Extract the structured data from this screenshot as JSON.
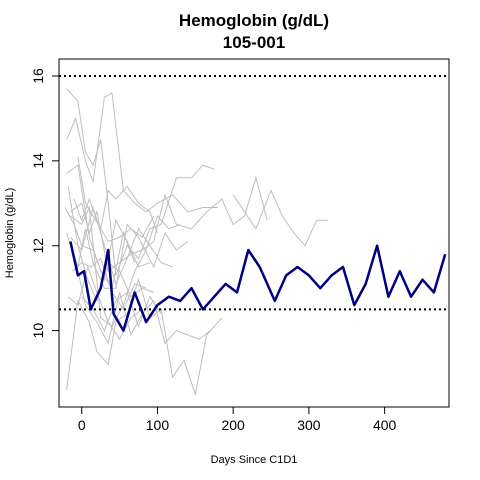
{
  "chart_data": {
    "type": "line",
    "title": "Hemoglobin (g/dL)",
    "subtitle": "105-001",
    "xlabel": "Days Since C1D1",
    "ylabel": "Hemoglobin (g/dL)",
    "xlim": [
      -30,
      485
    ],
    "ylim": [
      8.2,
      16.4
    ],
    "xticks": [
      0,
      100,
      200,
      300,
      400
    ],
    "yticks": [
      10,
      12,
      14,
      16
    ],
    "reference_lines": [
      16,
      10.5
    ],
    "grid": false,
    "highlight_color": "#000080",
    "background_color": "#bebebe",
    "highlight": {
      "name": "105-001",
      "points": [
        [
          -15,
          12.1
        ],
        [
          -5,
          11.3
        ],
        [
          3,
          11.4
        ],
        [
          12,
          10.5
        ],
        [
          25,
          11.0
        ],
        [
          35,
          11.9
        ],
        [
          42,
          10.4
        ],
        [
          55,
          10.0
        ],
        [
          70,
          10.9
        ],
        [
          85,
          10.2
        ],
        [
          100,
          10.6
        ],
        [
          115,
          10.8
        ],
        [
          130,
          10.7
        ],
        [
          145,
          11.0
        ],
        [
          160,
          10.5
        ],
        [
          175,
          10.8
        ],
        [
          190,
          11.1
        ],
        [
          205,
          10.9
        ],
        [
          220,
          11.9
        ],
        [
          235,
          11.5
        ],
        [
          255,
          10.7
        ],
        [
          270,
          11.3
        ],
        [
          285,
          11.5
        ],
        [
          300,
          11.3
        ],
        [
          315,
          11.0
        ],
        [
          330,
          11.3
        ],
        [
          345,
          11.5
        ],
        [
          360,
          10.6
        ],
        [
          375,
          11.1
        ],
        [
          390,
          12.0
        ],
        [
          405,
          10.8
        ],
        [
          420,
          11.4
        ],
        [
          435,
          10.8
        ],
        [
          450,
          11.2
        ],
        [
          465,
          10.9
        ],
        [
          480,
          11.8
        ]
      ]
    },
    "background_series": [
      {
        "points": [
          [
            -20,
            15.7
          ],
          [
            -5,
            15.4
          ],
          [
            5,
            14.2
          ],
          [
            15,
            13.9
          ],
          [
            25,
            14.5
          ],
          [
            35,
            13.0
          ],
          [
            45,
            11.3
          ],
          [
            60,
            12.0
          ],
          [
            75,
            11.7
          ],
          [
            90,
            12.4
          ],
          [
            105,
            12.5
          ],
          [
            125,
            13.6
          ],
          [
            145,
            13.6
          ],
          [
            160,
            13.9
          ],
          [
            175,
            13.8
          ]
        ]
      },
      {
        "points": [
          [
            -20,
            14.5
          ],
          [
            -8,
            15.0
          ],
          [
            5,
            14.0
          ],
          [
            15,
            13.5
          ],
          [
            30,
            15.5
          ],
          [
            40,
            15.6
          ],
          [
            55,
            13.3
          ],
          [
            70,
            13.0
          ],
          [
            85,
            12.8
          ],
          [
            100,
            13.0
          ],
          [
            120,
            13.2
          ],
          [
            140,
            12.8
          ],
          [
            160,
            12.9
          ],
          [
            180,
            12.9
          ]
        ]
      },
      {
        "points": [
          [
            -15,
            12.8
          ],
          [
            0,
            13.0
          ],
          [
            10,
            12.3
          ],
          [
            20,
            12.8
          ],
          [
            35,
            11.4
          ],
          [
            50,
            11.6
          ],
          [
            65,
            11.8
          ],
          [
            80,
            11.9
          ],
          [
            95,
            12.1
          ],
          [
            110,
            13.2
          ],
          [
            125,
            12.5
          ],
          [
            145,
            12.4
          ],
          [
            165,
            12.8
          ],
          [
            185,
            13.1
          ],
          [
            200,
            12.5
          ],
          [
            215,
            12.7
          ],
          [
            230,
            13.6
          ],
          [
            245,
            12.6
          ]
        ]
      },
      {
        "points": [
          [
            -20,
            8.6
          ],
          [
            -5,
            10.7
          ],
          [
            10,
            10.2
          ],
          [
            20,
            9.5
          ],
          [
            35,
            9.2
          ],
          [
            45,
            10.2
          ],
          [
            60,
            10.4
          ],
          [
            75,
            11.2
          ],
          [
            90,
            10.3
          ],
          [
            105,
            10.5
          ],
          [
            120,
            8.9
          ],
          [
            135,
            9.3
          ],
          [
            150,
            8.5
          ],
          [
            165,
            9.9
          ],
          [
            185,
            10.3
          ]
        ]
      },
      {
        "points": [
          [
            -20,
            12.3
          ],
          [
            -5,
            11.5
          ],
          [
            5,
            12.4
          ],
          [
            15,
            11.6
          ],
          [
            30,
            11.0
          ],
          [
            45,
            11.0
          ],
          [
            60,
            12.5
          ],
          [
            75,
            12.2
          ],
          [
            95,
            11.5
          ],
          [
            110,
            12.3
          ],
          [
            125,
            11.9
          ],
          [
            140,
            12.1
          ]
        ]
      },
      {
        "points": [
          [
            -10,
            11.8
          ],
          [
            5,
            10.6
          ],
          [
            20,
            10.2
          ],
          [
            35,
            9.7
          ],
          [
            50,
            10.9
          ],
          [
            65,
            9.9
          ],
          [
            80,
            10.4
          ],
          [
            95,
            10.7
          ],
          [
            110,
            9.7
          ],
          [
            125,
            10.0
          ],
          [
            140,
            9.9
          ],
          [
            155,
            9.8
          ],
          [
            170,
            10.0
          ]
        ]
      },
      {
        "points": [
          [
            -15,
            12.7
          ],
          [
            0,
            12.5
          ],
          [
            10,
            12.9
          ],
          [
            25,
            10.3
          ],
          [
            40,
            10.1
          ],
          [
            55,
            10.6
          ],
          [
            70,
            11.4
          ],
          [
            85,
            11.9
          ],
          [
            100,
            12.7
          ],
          [
            115,
            12.4
          ],
          [
            130,
            12.5
          ]
        ]
      },
      {
        "points": [
          [
            -5,
            14.1
          ],
          [
            5,
            13.0
          ],
          [
            15,
            12.7
          ],
          [
            25,
            12.4
          ],
          [
            35,
            13.3
          ],
          [
            45,
            13.1
          ],
          [
            60,
            13.4
          ],
          [
            75,
            13.0
          ],
          [
            90,
            12.8
          ],
          [
            100,
            12.3
          ]
        ]
      },
      {
        "points": [
          [
            -18,
            13.4
          ],
          [
            -5,
            12.0
          ],
          [
            8,
            11.2
          ],
          [
            20,
            10.7
          ],
          [
            35,
            11.6
          ],
          [
            50,
            11.4
          ],
          [
            65,
            10.8
          ],
          [
            80,
            11.0
          ],
          [
            95,
            10.9
          ]
        ]
      },
      {
        "points": [
          [
            -10,
            13.1
          ],
          [
            0,
            12.6
          ],
          [
            10,
            13.1
          ],
          [
            22,
            12.5
          ],
          [
            35,
            12.1
          ],
          [
            50,
            12.2
          ],
          [
            65,
            12.4
          ],
          [
            80,
            12.2
          ],
          [
            95,
            12.7
          ]
        ]
      },
      {
        "points": [
          [
            -22,
            12.9
          ],
          [
            -10,
            12.5
          ],
          [
            0,
            12.0
          ],
          [
            15,
            11.9
          ],
          [
            30,
            11.2
          ],
          [
            45,
            12.6
          ],
          [
            60,
            12.1
          ],
          [
            75,
            11.5
          ],
          [
            90,
            11.6
          ]
        ]
      },
      {
        "points": [
          [
            -12,
            11.4
          ],
          [
            0,
            11.6
          ],
          [
            12,
            11.5
          ],
          [
            25,
            11.7
          ],
          [
            40,
            10.9
          ],
          [
            55,
            10.5
          ],
          [
            70,
            11.1
          ],
          [
            85,
            11.0
          ]
        ]
      },
      {
        "points": [
          [
            -18,
            10.8
          ],
          [
            -5,
            10.6
          ],
          [
            8,
            11.5
          ],
          [
            20,
            10.9
          ],
          [
            35,
            10.2
          ],
          [
            50,
            9.8
          ],
          [
            65,
            10.3
          ],
          [
            80,
            10.5
          ]
        ]
      },
      {
        "points": [
          [
            -20,
            13.7
          ],
          [
            -5,
            13.9
          ],
          [
            10,
            12.2
          ],
          [
            25,
            11.4
          ],
          [
            40,
            11.0
          ],
          [
            55,
            12.3
          ],
          [
            70,
            11.6
          ]
        ]
      },
      {
        "points": [
          [
            -15,
            12.2
          ],
          [
            0,
            11.9
          ],
          [
            15,
            12.9
          ],
          [
            30,
            12.0
          ],
          [
            45,
            11.1
          ],
          [
            60,
            11.7
          ],
          [
            75,
            12.4
          ],
          [
            90,
            12.0
          ],
          [
            105,
            11.6
          ],
          [
            120,
            11.5
          ]
        ]
      },
      {
        "points": [
          [
            0,
            10.8
          ],
          [
            15,
            10.5
          ],
          [
            30,
            10.0
          ],
          [
            45,
            10.7
          ],
          [
            60,
            10.9
          ],
          [
            75,
            10.1
          ],
          [
            90,
            10.8
          ],
          [
            105,
            10.4
          ]
        ]
      },
      {
        "points": [
          [
            200,
            13.2
          ],
          [
            215,
            12.8
          ],
          [
            230,
            12.4
          ],
          [
            250,
            13.3
          ],
          [
            265,
            12.7
          ],
          [
            280,
            12.3
          ],
          [
            295,
            12.0
          ],
          [
            310,
            12.6
          ],
          [
            325,
            12.6
          ]
        ]
      }
    ]
  }
}
